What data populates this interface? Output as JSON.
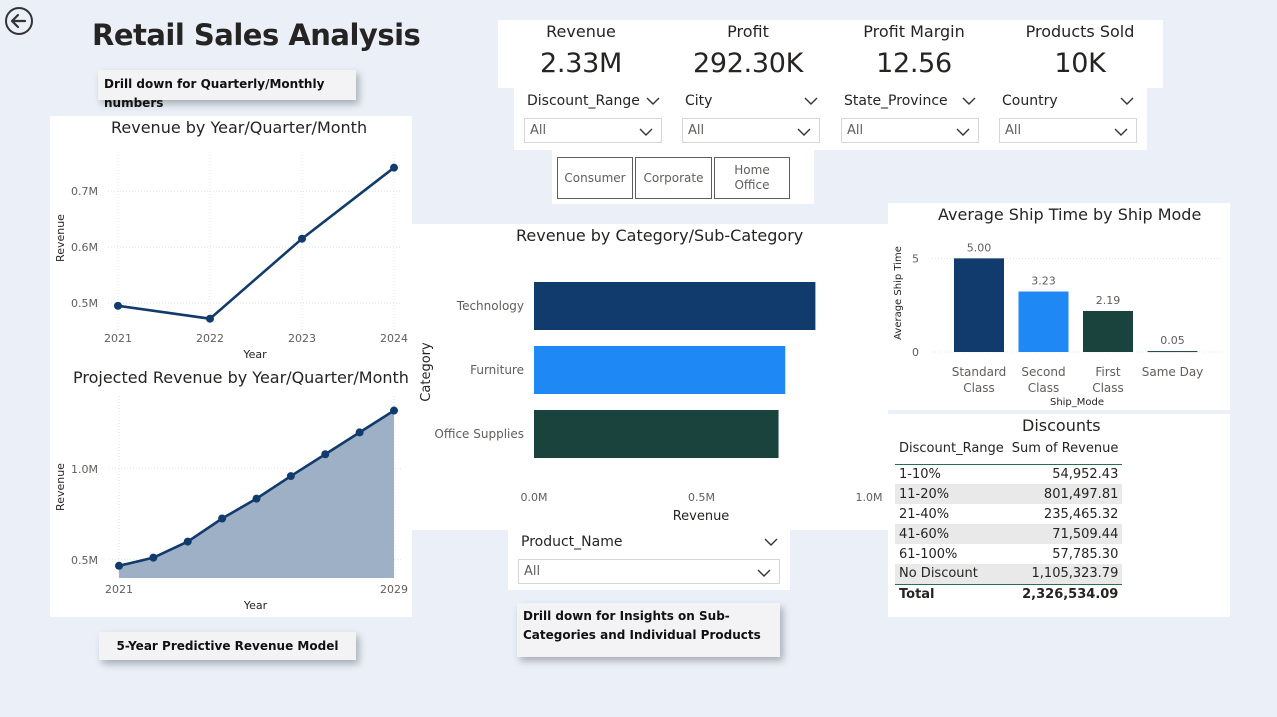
{
  "header": {
    "title": "Retail Sales Analysis",
    "back_icon": "arrow-left-circle-icon"
  },
  "callouts": {
    "drill_time": "Drill down for Quarterly/Monthly numbers",
    "predictive": "5-Year Predictive Revenue Model",
    "drill_category": "Drill down for Insights on Sub-Categories and Individual Products"
  },
  "kpis": [
    {
      "label": "Revenue",
      "value": "2.33M"
    },
    {
      "label": "Profit",
      "value": "292.30K"
    },
    {
      "label": "Profit Margin",
      "value": "12.56"
    },
    {
      "label": "Products Sold",
      "value": "10K"
    }
  ],
  "slicers": {
    "discount_range": {
      "title": "Discount_Range",
      "value": "All"
    },
    "city": {
      "title": "City",
      "value": "All"
    },
    "state_province": {
      "title": "State_Province",
      "value": "All"
    },
    "country": {
      "title": "Country",
      "value": "All"
    },
    "product_name": {
      "title": "Product_Name",
      "value": "All"
    }
  },
  "segments": [
    "Consumer",
    "Corporate",
    "Home Office"
  ],
  "colors": {
    "background": "#eaeff8",
    "navy": "#123b6d",
    "blue": "#1e88f5",
    "dark_green": "#1b433d",
    "area_fill": "#9eb0c5"
  },
  "chart_data": [
    {
      "type": "line",
      "title": "Revenue by Year/Quarter/Month",
      "xlabel": "Year",
      "ylabel": "Revenue",
      "x": [
        "2021",
        "2022",
        "2023",
        "2024"
      ],
      "values": [
        495000,
        472000,
        615000,
        742000
      ],
      "yticks": [
        "0.5M",
        "0.6M",
        "0.7M"
      ],
      "ytick_values": [
        500000,
        600000,
        700000
      ],
      "ylim": [
        450000,
        770000
      ],
      "grid": true
    },
    {
      "type": "area",
      "title": "Projected Revenue by Year/Quarter/Month",
      "xlabel": "Year",
      "ylabel": "Revenue",
      "x_start": "2021",
      "x_end": "2029",
      "values": [
        467000,
        512000,
        600000,
        727000,
        836000,
        960000,
        1080000,
        1200000,
        1320000
      ],
      "yticks": [
        "0.5M",
        "1.0M"
      ],
      "ytick_values": [
        500000,
        1000000
      ],
      "ylim": [
        400000,
        1400000
      ],
      "grid": true
    },
    {
      "type": "bar",
      "orientation": "horizontal",
      "title": "Revenue by Category/Sub-Category",
      "xlabel": "Revenue",
      "ylabel": "Category",
      "categories": [
        "Technology",
        "Furniture",
        "Office Supplies"
      ],
      "values": [
        840000,
        750000,
        730000
      ],
      "xticks": [
        "0.0M",
        "0.5M",
        "1.0M"
      ],
      "xtick_values": [
        0,
        500000,
        1000000
      ],
      "xlim": [
        0,
        1000000
      ]
    },
    {
      "type": "bar",
      "title": "Average Ship Time by Ship Mode",
      "xlabel": "Ship_Mode",
      "ylabel": "Average Ship Time",
      "categories": [
        "Standard Class",
        "Second Class",
        "First Class",
        "Same Day"
      ],
      "values": [
        5.0,
        3.23,
        2.19,
        0.05
      ],
      "data_labels": [
        "5.00",
        "3.23",
        "2.19",
        "0.05"
      ],
      "yticks": [
        "0",
        "5"
      ],
      "ytick_values": [
        0,
        5
      ],
      "ylim": [
        0,
        5.5
      ]
    },
    {
      "type": "table",
      "title": "Discounts",
      "columns": [
        "Discount_Range",
        "Sum of Revenue"
      ],
      "rows": [
        [
          "1-10%",
          "54,952.43"
        ],
        [
          "11-20%",
          "801,497.81"
        ],
        [
          "21-40%",
          "235,465.32"
        ],
        [
          "41-60%",
          "71,509.44"
        ],
        [
          "61-100%",
          "57,785.30"
        ],
        [
          "No Discount",
          "1,105,323.79"
        ]
      ],
      "total": [
        "Total",
        "2,326,534.09"
      ]
    }
  ]
}
